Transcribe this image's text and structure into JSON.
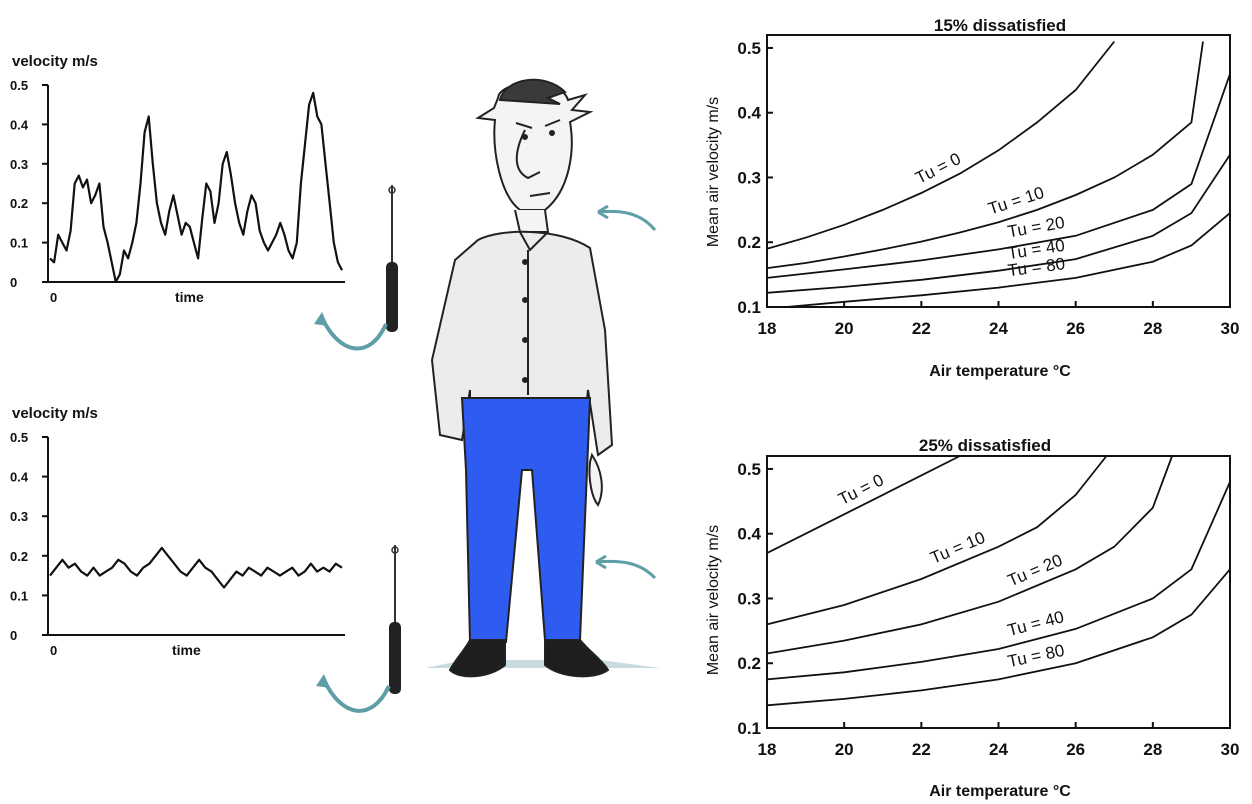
{
  "chart_data": [
    {
      "type": "line",
      "id": "fluctuating",
      "title": "velocity m/s",
      "xlabel": "time",
      "x_ticks": [
        "0"
      ],
      "ylim": [
        0,
        0.5
      ],
      "y_ticks": [
        "0.5",
        "0.4",
        "0.3",
        "0.2",
        "0.1",
        "0"
      ],
      "series": [
        {
          "values": [
            0.06,
            0.05,
            0.12,
            0.1,
            0.08,
            0.13,
            0.25,
            0.27,
            0.24,
            0.26,
            0.2,
            0.22,
            0.25,
            0.14,
            0.1,
            0.05,
            0.0,
            0.02,
            0.08,
            0.06,
            0.1,
            0.15,
            0.25,
            0.38,
            0.42,
            0.3,
            0.2,
            0.15,
            0.12,
            0.18,
            0.22,
            0.17,
            0.12,
            0.15,
            0.14,
            0.1,
            0.06,
            0.16,
            0.25,
            0.23,
            0.15,
            0.2,
            0.3,
            0.33,
            0.27,
            0.2,
            0.15,
            0.12,
            0.18,
            0.22,
            0.2,
            0.13,
            0.1,
            0.08,
            0.1,
            0.12,
            0.15,
            0.12,
            0.08,
            0.06,
            0.1,
            0.25,
            0.35,
            0.45,
            0.48,
            0.42,
            0.4,
            0.3,
            0.2,
            0.1,
            0.05,
            0.03
          ]
        }
      ]
    },
    {
      "type": "line",
      "id": "steady",
      "title": "velocity m/s",
      "xlabel": "time",
      "x_ticks": [
        "0"
      ],
      "ylim": [
        0,
        0.5
      ],
      "y_ticks": [
        "0.5",
        "0.4",
        "0.3",
        "0.2",
        "0.1",
        "0"
      ],
      "series": [
        {
          "values": [
            0.15,
            0.17,
            0.19,
            0.17,
            0.18,
            0.16,
            0.15,
            0.17,
            0.15,
            0.16,
            0.17,
            0.19,
            0.18,
            0.16,
            0.15,
            0.17,
            0.18,
            0.2,
            0.22,
            0.2,
            0.18,
            0.16,
            0.15,
            0.17,
            0.19,
            0.17,
            0.16,
            0.14,
            0.12,
            0.14,
            0.16,
            0.15,
            0.17,
            0.16,
            0.15,
            0.17,
            0.16,
            0.15,
            0.16,
            0.17,
            0.15,
            0.16,
            0.18,
            0.16,
            0.17,
            0.16,
            0.18,
            0.17
          ]
        }
      ]
    },
    {
      "type": "line",
      "id": "draught-15",
      "title": "15% dissatisfied",
      "xlabel": "Air temperature °C",
      "ylabel": "Mean air velocity m/s",
      "xlim": [
        18,
        30
      ],
      "ylim": [
        0.1,
        0.52
      ],
      "x_ticks": [
        "18",
        "20",
        "22",
        "24",
        "26",
        "28",
        "30"
      ],
      "y_ticks": [
        "0.1",
        "0.2",
        "0.3",
        "0.4",
        "0.5"
      ],
      "series": [
        {
          "name": "Tu = 0",
          "x": [
            18,
            19,
            20,
            21,
            22,
            23,
            24,
            25,
            26,
            27
          ],
          "y": [
            0.19,
            0.207,
            0.227,
            0.25,
            0.276,
            0.306,
            0.342,
            0.385,
            0.435,
            0.51
          ]
        },
        {
          "name": "Tu = 10",
          "x": [
            18,
            19,
            20,
            21,
            22,
            23,
            24,
            25,
            26,
            27,
            28,
            29,
            29.3
          ],
          "y": [
            0.16,
            0.168,
            0.178,
            0.189,
            0.201,
            0.215,
            0.231,
            0.25,
            0.273,
            0.3,
            0.335,
            0.385,
            0.51
          ]
        },
        {
          "name": "Tu = 20",
          "x": [
            18,
            20,
            22,
            24,
            26,
            28,
            29,
            30
          ],
          "y": [
            0.145,
            0.158,
            0.172,
            0.189,
            0.21,
            0.25,
            0.29,
            0.46
          ]
        },
        {
          "name": "Tu = 40",
          "x": [
            18,
            20,
            22,
            24,
            26,
            28,
            29,
            30
          ],
          "y": [
            0.122,
            0.131,
            0.142,
            0.156,
            0.174,
            0.21,
            0.245,
            0.335
          ]
        },
        {
          "name": "Tu = 80",
          "x": [
            18.5,
            20,
            22,
            24,
            26,
            28,
            29,
            30
          ],
          "y": [
            0.1,
            0.108,
            0.118,
            0.13,
            0.145,
            0.17,
            0.195,
            0.245
          ]
        }
      ]
    },
    {
      "type": "line",
      "id": "draught-25",
      "title": "25% dissatisfied",
      "xlabel": "Air temperature °C",
      "ylabel": "Mean air velocity m/s",
      "xlim": [
        18,
        30
      ],
      "ylim": [
        0.1,
        0.52
      ],
      "x_ticks": [
        "18",
        "20",
        "22",
        "24",
        "26",
        "28",
        "30"
      ],
      "y_ticks": [
        "0.1",
        "0.2",
        "0.3",
        "0.4",
        "0.5"
      ],
      "series": [
        {
          "name": "Tu = 0",
          "x": [
            18,
            19,
            20,
            21,
            22,
            23
          ],
          "y": [
            0.37,
            0.4,
            0.43,
            0.46,
            0.49,
            0.52
          ]
        },
        {
          "name": "Tu = 10",
          "x": [
            18,
            20,
            22,
            24,
            25,
            26,
            26.8
          ],
          "y": [
            0.26,
            0.29,
            0.33,
            0.38,
            0.41,
            0.46,
            0.52
          ]
        },
        {
          "name": "Tu = 20",
          "x": [
            18,
            20,
            22,
            24,
            26,
            27,
            28,
            28.5
          ],
          "y": [
            0.215,
            0.235,
            0.26,
            0.295,
            0.345,
            0.38,
            0.44,
            0.52
          ]
        },
        {
          "name": "Tu = 40",
          "x": [
            18,
            20,
            22,
            24,
            26,
            28,
            29,
            30
          ],
          "y": [
            0.175,
            0.186,
            0.202,
            0.222,
            0.253,
            0.3,
            0.345,
            0.48
          ]
        },
        {
          "name": "Tu = 80",
          "x": [
            18,
            20,
            22,
            24,
            26,
            28,
            29,
            30
          ],
          "y": [
            0.135,
            0.145,
            0.158,
            0.175,
            0.2,
            0.24,
            0.275,
            0.345
          ]
        }
      ]
    }
  ],
  "colors": {
    "ink": "#111111",
    "jeans": "#2f5cf0",
    "shirt": "#eeeeee",
    "probe_arrow": "#5f9ea6",
    "shoes": "#1e1e1e"
  },
  "icons": [
    "velocity-probe-icon",
    "person-illustration",
    "air-flow-arrow-icon"
  ]
}
